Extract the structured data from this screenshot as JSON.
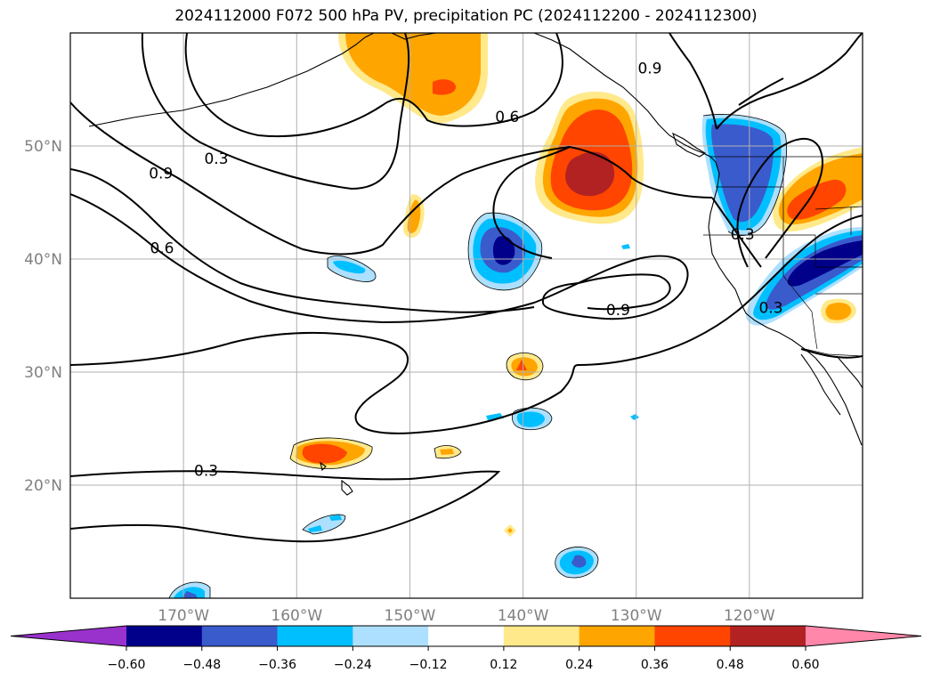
{
  "title": "2024112000 F072 500 hPa PV, precipitation PC (2024112200 - 2024112300)",
  "map": {
    "lon_range": [
      -180,
      -110
    ],
    "lat_range": [
      10,
      60
    ],
    "lon_ticks": [
      {
        "value": -170,
        "label": "170°W"
      },
      {
        "value": -160,
        "label": "160°W"
      },
      {
        "value": -150,
        "label": "150°W"
      },
      {
        "value": -140,
        "label": "140°W"
      },
      {
        "value": -130,
        "label": "130°W"
      },
      {
        "value": -120,
        "label": "120°W"
      }
    ],
    "lat_ticks": [
      {
        "value": 20,
        "label": "20°N"
      },
      {
        "value": 30,
        "label": "30°N"
      },
      {
        "value": 40,
        "label": "40°N"
      },
      {
        "value": 50,
        "label": "50°N"
      }
    ],
    "grid": true,
    "contour_labels": [
      {
        "text": "0.9",
        "lon": -128.8,
        "lat": 56.9
      },
      {
        "text": "0.6",
        "lon": -141.4,
        "lat": 52.6
      },
      {
        "text": "0.3",
        "lon": -167.1,
        "lat": 48.9
      },
      {
        "text": "0.9",
        "lon": -172.0,
        "lat": 47.6
      },
      {
        "text": "0.6",
        "lon": -171.9,
        "lat": 41.0
      },
      {
        "text": "0.9",
        "lon": -131.6,
        "lat": 35.5
      },
      {
        "text": "0.3",
        "lon": -120.6,
        "lat": 42.2
      },
      {
        "text": "0.3",
        "lon": -118.1,
        "lat": 35.7
      },
      {
        "text": "0.3",
        "lon": -168.0,
        "lat": 21.3
      }
    ]
  },
  "colorbar": {
    "levels": [
      -0.6,
      -0.48,
      -0.36,
      -0.24,
      -0.12,
      0.12,
      0.24,
      0.36,
      0.48,
      0.6
    ],
    "tick_labels": [
      "−0.60",
      "−0.48",
      "−0.36",
      "−0.24",
      "−0.12",
      "0.12",
      "0.24",
      "0.36",
      "0.48",
      "0.60"
    ],
    "colors": [
      "#9932cc",
      "#00008b",
      "#3a5bcc",
      "#00bfff",
      "#ade0ff",
      "#ffffff",
      "#ffe98a",
      "#ffa500",
      "#ff4500",
      "#b22222",
      "#ff88aa"
    ],
    "extend": "both"
  },
  "styles": {
    "axis_tick_color": "#808080",
    "grid_color": "#b0b0b0"
  }
}
